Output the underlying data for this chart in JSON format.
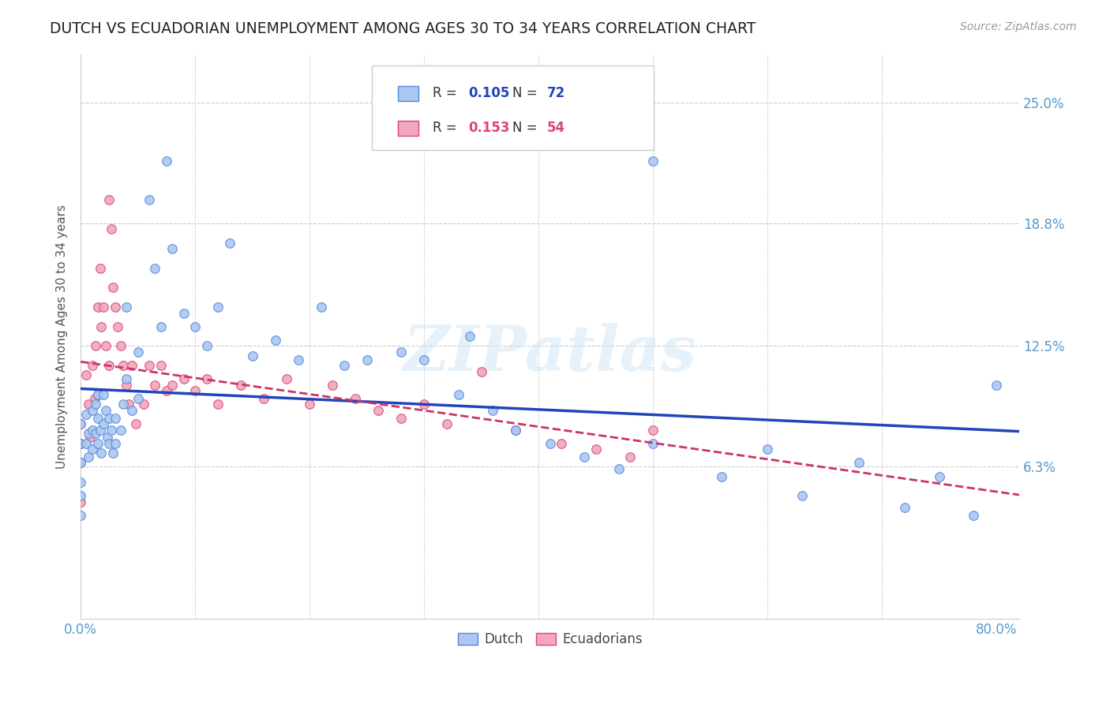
{
  "title": "DUTCH VS ECUADORIAN UNEMPLOYMENT AMONG AGES 30 TO 34 YEARS CORRELATION CHART",
  "source": "Source: ZipAtlas.com",
  "ylabel": "Unemployment Among Ages 30 to 34 years",
  "ytick_values": [
    0.063,
    0.125,
    0.188,
    0.25
  ],
  "ytick_labels": [
    "6.3%",
    "12.5%",
    "18.8%",
    "25.0%"
  ],
  "xlim": [
    0.0,
    0.82
  ],
  "ylim": [
    -0.015,
    0.275
  ],
  "legend1_R": "0.105",
  "legend1_N": "72",
  "legend2_R": "0.153",
  "legend2_N": "54",
  "dutch_color": "#aac8f0",
  "dutch_edge_color": "#5588dd",
  "ecuadorian_color": "#f0a8bc",
  "ecuadorian_edge_color": "#dd4477",
  "dutch_line_color": "#2244bb",
  "ecuadorian_line_color": "#cc3366",
  "background_color": "#ffffff",
  "grid_color": "#cccccc",
  "title_color": "#222222",
  "axis_tick_color": "#5599cc",
  "watermark": "ZIPatlas",
  "marker_size": 70,
  "title_fontsize": 13.5,
  "dutch_x": [
    0.0,
    0.0,
    0.0,
    0.0,
    0.0,
    0.0,
    0.005,
    0.005,
    0.007,
    0.007,
    0.01,
    0.01,
    0.01,
    0.013,
    0.013,
    0.015,
    0.015,
    0.015,
    0.017,
    0.018,
    0.02,
    0.02,
    0.022,
    0.023,
    0.025,
    0.025,
    0.027,
    0.028,
    0.03,
    0.03,
    0.035,
    0.037,
    0.04,
    0.04,
    0.045,
    0.05,
    0.05,
    0.06,
    0.065,
    0.07,
    0.075,
    0.08,
    0.09,
    0.1,
    0.11,
    0.12,
    0.13,
    0.15,
    0.17,
    0.19,
    0.21,
    0.23,
    0.25,
    0.28,
    0.3,
    0.33,
    0.36,
    0.38,
    0.41,
    0.44,
    0.47,
    0.5,
    0.56,
    0.6,
    0.63,
    0.68,
    0.72,
    0.75,
    0.78,
    0.8,
    0.34,
    0.5
  ],
  "dutch_y": [
    0.085,
    0.075,
    0.065,
    0.055,
    0.048,
    0.038,
    0.09,
    0.075,
    0.08,
    0.068,
    0.092,
    0.082,
    0.072,
    0.095,
    0.08,
    0.1,
    0.088,
    0.075,
    0.082,
    0.07,
    0.1,
    0.085,
    0.092,
    0.078,
    0.088,
    0.075,
    0.082,
    0.07,
    0.088,
    0.075,
    0.082,
    0.095,
    0.145,
    0.108,
    0.092,
    0.122,
    0.098,
    0.2,
    0.165,
    0.135,
    0.22,
    0.175,
    0.142,
    0.135,
    0.125,
    0.145,
    0.178,
    0.12,
    0.128,
    0.118,
    0.145,
    0.115,
    0.118,
    0.122,
    0.118,
    0.1,
    0.092,
    0.082,
    0.075,
    0.068,
    0.062,
    0.075,
    0.058,
    0.072,
    0.048,
    0.065,
    0.042,
    0.058,
    0.038,
    0.105,
    0.13,
    0.22
  ],
  "ecu_x": [
    0.0,
    0.0,
    0.0,
    0.0,
    0.005,
    0.007,
    0.008,
    0.01,
    0.012,
    0.013,
    0.015,
    0.015,
    0.017,
    0.018,
    0.02,
    0.022,
    0.025,
    0.025,
    0.027,
    0.028,
    0.03,
    0.032,
    0.035,
    0.037,
    0.04,
    0.042,
    0.045,
    0.048,
    0.055,
    0.06,
    0.065,
    0.07,
    0.075,
    0.08,
    0.09,
    0.1,
    0.11,
    0.12,
    0.14,
    0.16,
    0.18,
    0.2,
    0.22,
    0.24,
    0.26,
    0.28,
    0.3,
    0.32,
    0.35,
    0.38,
    0.42,
    0.45,
    0.48,
    0.5
  ],
  "ecu_y": [
    0.085,
    0.075,
    0.065,
    0.045,
    0.11,
    0.095,
    0.078,
    0.115,
    0.098,
    0.125,
    0.145,
    0.1,
    0.165,
    0.135,
    0.145,
    0.125,
    0.2,
    0.115,
    0.185,
    0.155,
    0.145,
    0.135,
    0.125,
    0.115,
    0.105,
    0.095,
    0.115,
    0.085,
    0.095,
    0.115,
    0.105,
    0.115,
    0.102,
    0.105,
    0.108,
    0.102,
    0.108,
    0.095,
    0.105,
    0.098,
    0.108,
    0.095,
    0.105,
    0.098,
    0.092,
    0.088,
    0.095,
    0.085,
    0.112,
    0.082,
    0.075,
    0.072,
    0.068,
    0.082
  ]
}
